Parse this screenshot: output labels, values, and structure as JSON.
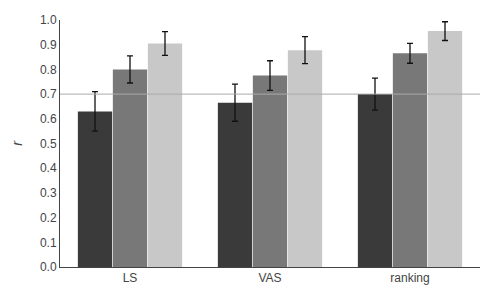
{
  "chart_data": {
    "type": "bar",
    "categories": [
      "LS",
      "VAS",
      "ranking"
    ],
    "series": [
      {
        "color": "#3a3a3a",
        "values": [
          0.63,
          0.665,
          0.7
        ],
        "errors": [
          0.08,
          0.075,
          0.065
        ]
      },
      {
        "color": "#787878",
        "values": [
          0.8,
          0.775,
          0.865
        ],
        "errors": [
          0.055,
          0.06,
          0.04
        ]
      },
      {
        "color": "#c8c8c8",
        "values": [
          0.905,
          0.878,
          0.955
        ],
        "errors": [
          0.048,
          0.055,
          0.038
        ]
      }
    ],
    "error_color": "#111111",
    "hline": {
      "y": 0.7,
      "color": "#aaaaaa"
    },
    "ylabel": "r",
    "ylim": [
      0.0,
      1.0
    ],
    "yticks": [
      {
        "value": 0.0,
        "label": "0.0"
      },
      0.1,
      0.2,
      0.3,
      0.4,
      0.5,
      0.6,
      0.7,
      0.8,
      0.9,
      {
        "value": 1.0,
        "label": "1.0"
      }
    ],
    "grid": false
  }
}
